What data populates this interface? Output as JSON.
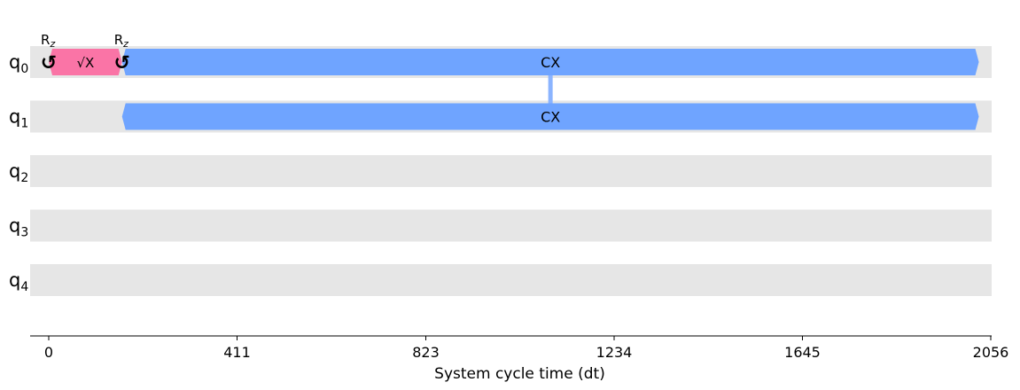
{
  "chart_data": {
    "type": "timeline",
    "xlabel": "System cycle time (dt)",
    "xlim": [
      0,
      2056
    ],
    "xticks": [
      0,
      411,
      823,
      1234,
      1645,
      2056
    ],
    "qubits": [
      {
        "name": "q",
        "index": "0"
      },
      {
        "name": "q",
        "index": "1"
      },
      {
        "name": "q",
        "index": "2"
      },
      {
        "name": "q",
        "index": "3"
      },
      {
        "name": "q",
        "index": "4"
      }
    ],
    "gates": [
      {
        "label": "√X",
        "qubit": 0,
        "start": 0,
        "end": 160,
        "color": "#fa74a6"
      },
      {
        "label": "CX",
        "qubit": 0,
        "start": 160,
        "end": 2030,
        "color": "#6fa4ff"
      },
      {
        "label": "CX",
        "qubit": 1,
        "start": 160,
        "end": 2030,
        "color": "#6fa4ff"
      }
    ],
    "frame_changes": [
      {
        "name": "R",
        "sub": "z",
        "symbol": "↺",
        "qubit": 0,
        "time": 0
      },
      {
        "name": "R",
        "sub": "z",
        "symbol": "↺",
        "qubit": 0,
        "time": 160
      }
    ],
    "links": [
      {
        "qubits": [
          0,
          1
        ],
        "time": 1095,
        "color": "#8bb4ff"
      }
    ],
    "colors": {
      "track": "#e6e6e6",
      "axis": "#000000"
    }
  }
}
